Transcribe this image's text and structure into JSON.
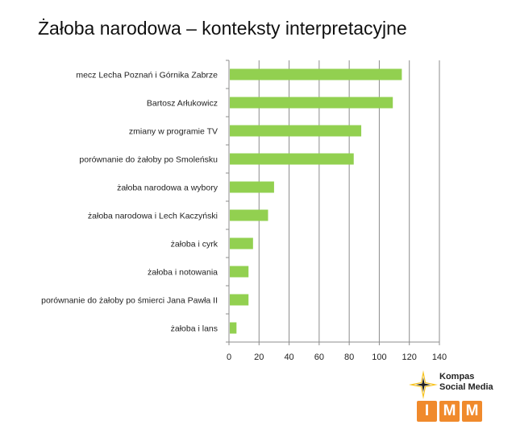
{
  "title": "Żałoba narodowa – konteksty interpretacyjne",
  "chart_data": {
    "type": "bar",
    "orientation": "horizontal",
    "categories": [
      "mecz Lecha Poznań i Górnika Zabrze",
      "Bartosz Arłukowicz",
      "zmiany w programie TV",
      "porównanie do żałoby po Smoleńsku",
      "żałoba narodowa a wybory",
      "żałoba narodowa i Lech Kaczyński",
      "żałoba i cyrk",
      "żałoba i notowania",
      "porównanie do żałoby po śmierci Jana Pawła II",
      "żałoba i lans"
    ],
    "values": [
      115,
      109,
      88,
      83,
      30,
      26,
      16,
      13,
      13,
      5
    ],
    "xlim": [
      0,
      140
    ],
    "xticks": [
      "0",
      "20",
      "40",
      "60",
      "80",
      "100",
      "120",
      "140"
    ],
    "grid": "vertical",
    "bar_color": "#92d050"
  },
  "logo": {
    "line1": "Kompas",
    "line2": "Social Media",
    "letters": [
      "I",
      "M",
      "M"
    ],
    "accent": "#f08a2c",
    "star_color": "#f7c31e"
  }
}
